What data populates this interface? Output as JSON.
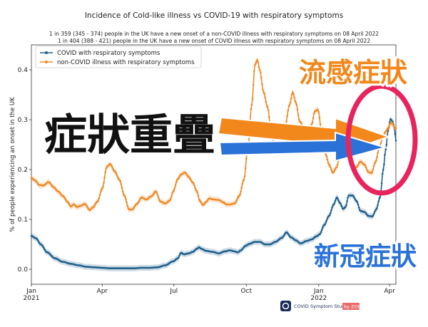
{
  "chart_data": {
    "type": "line",
    "title": "Incidence of Cold-like illness vs COVID-19 with respiratory symptoms",
    "subtitle_lines": [
      "1 in 359 (345 - 374) people in the UK have a new onset of a non-COVID illness with respiratory symptoms on 08 April 2022",
      "1 in 404 (388 - 421) people in the UK have a new onset of COVID illness with respiratory symptoms on 08 April 2022"
    ],
    "ylabel": "% of people experiencing an onset in the UK",
    "ylim": [
      -0.03,
      0.45
    ],
    "y_ticks": [
      "0.0",
      "0.1",
      "0.2",
      "0.3",
      "0.4"
    ],
    "x_ticks": [
      {
        "label": "Jan",
        "sub": "2021",
        "day": 0
      },
      {
        "label": "Apr",
        "sub": "",
        "day": 90
      },
      {
        "label": "Jul",
        "sub": "",
        "day": 181
      },
      {
        "label": "Oct",
        "sub": "",
        "day": 273
      },
      {
        "label": "Jan",
        "sub": "2022",
        "day": 365
      },
      {
        "label": "Apr",
        "sub": "",
        "day": 455
      }
    ],
    "x_range_days": [
      0,
      463
    ],
    "legend_position": "top-left",
    "series": [
      {
        "name": "COVID with respiratory symptoms",
        "color": "#1f5f8b",
        "points": [
          [
            0,
            0.067
          ],
          [
            6,
            0.062
          ],
          [
            12,
            0.05
          ],
          [
            20,
            0.034
          ],
          [
            30,
            0.022
          ],
          [
            40,
            0.015
          ],
          [
            50,
            0.011
          ],
          [
            60,
            0.008
          ],
          [
            70,
            0.005
          ],
          [
            80,
            0.004
          ],
          [
            90,
            0.003
          ],
          [
            100,
            0.002
          ],
          [
            110,
            0.002
          ],
          [
            120,
            0.002
          ],
          [
            130,
            0.002
          ],
          [
            140,
            0.003
          ],
          [
            150,
            0.003
          ],
          [
            160,
            0.004
          ],
          [
            170,
            0.008
          ],
          [
            180,
            0.016
          ],
          [
            186,
            0.022
          ],
          [
            190,
            0.033
          ],
          [
            194,
            0.03
          ],
          [
            200,
            0.032
          ],
          [
            205,
            0.035
          ],
          [
            210,
            0.041
          ],
          [
            213,
            0.044
          ],
          [
            216,
            0.041
          ],
          [
            222,
            0.037
          ],
          [
            230,
            0.035
          ],
          [
            238,
            0.032
          ],
          [
            246,
            0.036
          ],
          [
            252,
            0.038
          ],
          [
            258,
            0.036
          ],
          [
            262,
            0.034
          ],
          [
            266,
            0.038
          ],
          [
            272,
            0.047
          ],
          [
            277,
            0.051
          ],
          [
            284,
            0.055
          ],
          [
            290,
            0.055
          ],
          [
            297,
            0.05
          ],
          [
            303,
            0.05
          ],
          [
            310,
            0.055
          ],
          [
            318,
            0.063
          ],
          [
            324,
            0.074
          ],
          [
            330,
            0.064
          ],
          [
            336,
            0.058
          ],
          [
            342,
            0.052
          ],
          [
            350,
            0.057
          ],
          [
            356,
            0.06
          ],
          [
            362,
            0.066
          ],
          [
            366,
            0.07
          ],
          [
            372,
            0.089
          ],
          [
            378,
            0.107
          ],
          [
            384,
            0.13
          ],
          [
            388,
            0.144
          ],
          [
            392,
            0.133
          ],
          [
            396,
            0.121
          ],
          [
            399,
            0.125
          ],
          [
            403,
            0.148
          ],
          [
            408,
            0.148
          ],
          [
            413,
            0.137
          ],
          [
            418,
            0.117
          ],
          [
            423,
            0.115
          ],
          [
            428,
            0.107
          ],
          [
            433,
            0.106
          ],
          [
            438,
            0.12
          ],
          [
            443,
            0.145
          ],
          [
            447,
            0.2
          ],
          [
            450,
            0.24
          ],
          [
            453,
            0.278
          ],
          [
            456,
            0.301
          ],
          [
            459,
            0.296
          ],
          [
            461,
            0.284
          ],
          [
            463,
            0.258
          ]
        ]
      },
      {
        "name": "non-COVID illness with respiratory symptoms",
        "color": "#ee8a26",
        "points": [
          [
            0,
            0.183
          ],
          [
            5,
            0.178
          ],
          [
            10,
            0.169
          ],
          [
            15,
            0.168
          ],
          [
            22,
            0.175
          ],
          [
            28,
            0.165
          ],
          [
            34,
            0.156
          ],
          [
            40,
            0.147
          ],
          [
            46,
            0.135
          ],
          [
            50,
            0.126
          ],
          [
            54,
            0.13
          ],
          [
            58,
            0.125
          ],
          [
            62,
            0.127
          ],
          [
            68,
            0.131
          ],
          [
            74,
            0.119
          ],
          [
            78,
            0.124
          ],
          [
            84,
            0.136
          ],
          [
            90,
            0.162
          ],
          [
            96,
            0.206
          ],
          [
            100,
            0.211
          ],
          [
            106,
            0.196
          ],
          [
            112,
            0.179
          ],
          [
            118,
            0.148
          ],
          [
            124,
            0.12
          ],
          [
            128,
            0.12
          ],
          [
            134,
            0.131
          ],
          [
            140,
            0.144
          ],
          [
            146,
            0.14
          ],
          [
            152,
            0.146
          ],
          [
            158,
            0.156
          ],
          [
            164,
            0.136
          ],
          [
            170,
            0.132
          ],
          [
            176,
            0.138
          ],
          [
            180,
            0.156
          ],
          [
            186,
            0.181
          ],
          [
            190,
            0.19
          ],
          [
            195,
            0.194
          ],
          [
            200,
            0.185
          ],
          [
            205,
            0.174
          ],
          [
            210,
            0.157
          ],
          [
            214,
            0.137
          ],
          [
            218,
            0.129
          ],
          [
            222,
            0.135
          ],
          [
            226,
            0.142
          ],
          [
            232,
            0.14
          ],
          [
            238,
            0.139
          ],
          [
            244,
            0.134
          ],
          [
            248,
            0.13
          ],
          [
            252,
            0.13
          ],
          [
            258,
            0.132
          ],
          [
            264,
            0.147
          ],
          [
            270,
            0.18
          ],
          [
            275,
            0.245
          ],
          [
            280,
            0.33
          ],
          [
            284,
            0.41
          ],
          [
            287,
            0.42
          ],
          [
            290,
            0.4
          ],
          [
            295,
            0.355
          ],
          [
            300,
            0.325
          ],
          [
            305,
            0.27
          ],
          [
            310,
            0.24
          ],
          [
            316,
            0.245
          ],
          [
            322,
            0.285
          ],
          [
            328,
            0.33
          ],
          [
            332,
            0.355
          ],
          [
            336,
            0.334
          ],
          [
            341,
            0.296
          ],
          [
            346,
            0.285
          ],
          [
            350,
            0.27
          ],
          [
            356,
            0.29
          ],
          [
            360,
            0.317
          ],
          [
            364,
            0.32
          ],
          [
            369,
            0.275
          ],
          [
            374,
            0.23
          ],
          [
            378,
            0.21
          ],
          [
            383,
            0.194
          ],
          [
            388,
            0.205
          ],
          [
            393,
            0.25
          ],
          [
            398,
            0.254
          ],
          [
            403,
            0.238
          ],
          [
            408,
            0.2
          ],
          [
            413,
            0.205
          ],
          [
            418,
            0.216
          ],
          [
            423,
            0.21
          ],
          [
            428,
            0.195
          ],
          [
            432,
            0.193
          ],
          [
            437,
            0.215
          ],
          [
            442,
            0.243
          ],
          [
            446,
            0.264
          ],
          [
            450,
            0.276
          ],
          [
            453,
            0.283
          ],
          [
            456,
            0.293
          ],
          [
            459,
            0.292
          ],
          [
            461,
            0.283
          ],
          [
            463,
            0.283
          ]
        ]
      }
    ]
  },
  "overlay": {
    "flu_label": "流感症狀",
    "overlap_label": "症狀重疊",
    "covid_label": "新冠症狀",
    "flu_color": "#f2881c",
    "covid_color": "#2a72d8",
    "circle_color": "#e8245c"
  },
  "branding": {
    "text": "COVID Symptom Study",
    "by": "by ZOE"
  }
}
